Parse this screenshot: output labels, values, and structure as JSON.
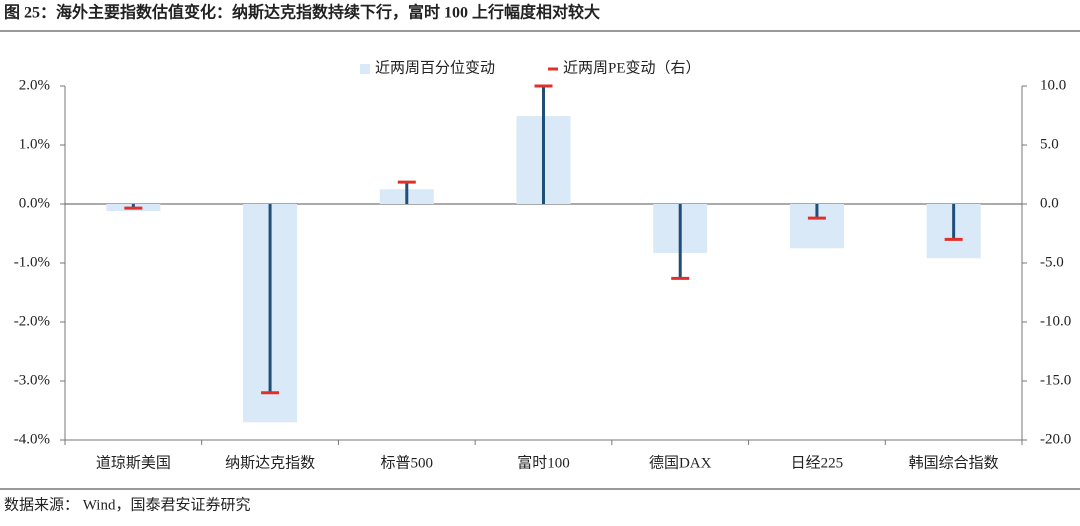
{
  "chart_data": {
    "type": "bar",
    "title": "图 25：海外主要指数估值变化：纳斯达克指数持续下行，富时 100 上行幅度相对较大",
    "source": "数据来源： Wind，国泰君安证券研究",
    "categories": [
      "道琼斯美国",
      "纳斯达克指数",
      "标普500",
      "富时100",
      "德国DAX",
      "日经225",
      "韩国综合指数"
    ],
    "series": [
      {
        "name": "近两周百分位变动",
        "color": "#dae9f7",
        "values": [
          -0.12,
          -3.7,
          0.25,
          1.49,
          -0.83,
          -0.75,
          -0.92
        ]
      },
      {
        "name": "近两周PE变动（右）",
        "color": "#e0302a",
        "stem_color": "#1f4e79",
        "axis": "y2",
        "values": [
          -0.35,
          -16.0,
          1.85,
          10.0,
          -6.3,
          -1.2,
          -3.0
        ]
      }
    ],
    "ylim": [
      -4,
      2
    ],
    "yticks": [
      {
        "value": -4,
        "label": "-4.0%"
      },
      {
        "value": -3,
        "label": "-3.0%"
      },
      {
        "value": -2,
        "label": "-2.0%"
      },
      {
        "value": -1,
        "label": "-1.0%"
      },
      {
        "value": 0,
        "label": "0.0%"
      },
      {
        "value": 1,
        "label": "1.0%"
      },
      {
        "value": 2,
        "label": "2.0%"
      }
    ],
    "y2lim": [
      -20,
      10
    ],
    "y2ticks": [
      {
        "value": -20,
        "label": "-20.0"
      },
      {
        "value": -15,
        "label": "-15.0"
      },
      {
        "value": -10,
        "label": "-10.0"
      },
      {
        "value": -5,
        "label": "-5.0"
      },
      {
        "value": 0,
        "label": "0.0"
      },
      {
        "value": 5,
        "label": "5.0"
      },
      {
        "value": 10,
        "label": "10.0"
      }
    ]
  }
}
